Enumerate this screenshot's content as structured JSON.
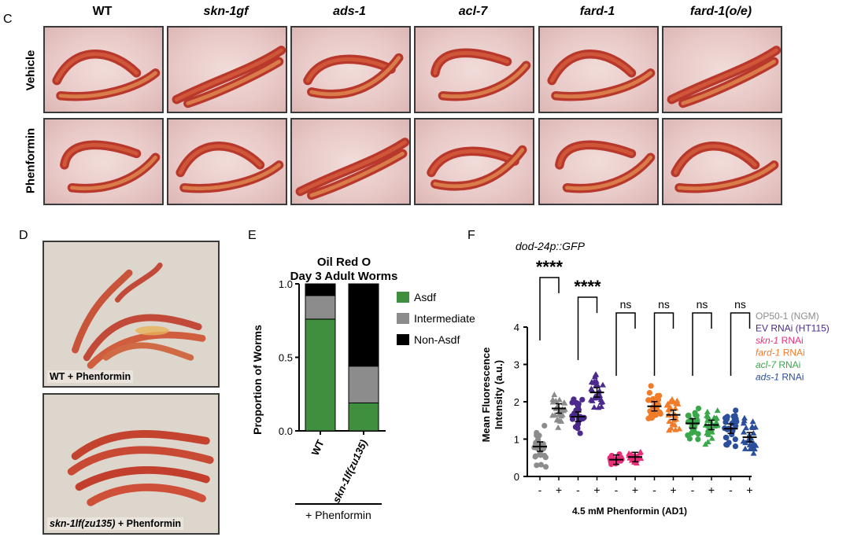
{
  "panel_c": {
    "label": "C",
    "columns": [
      {
        "label": "WT",
        "italic": false
      },
      {
        "label": "skn-1gf",
        "italic": true
      },
      {
        "label": "ads-1",
        "italic": true
      },
      {
        "label": "acl-7",
        "italic": true
      },
      {
        "label": "fard-1",
        "italic": true
      },
      {
        "label": "fard-1(o/e)",
        "italic": true
      }
    ],
    "rows": [
      "Vehicle",
      "Phenformin"
    ]
  },
  "panel_d": {
    "label": "D",
    "top_caption": "WT + Phenformin",
    "bottom_caption_italic": "skn-1lf(zu135)",
    "bottom_caption_rest": " + Phenformin"
  },
  "panel_e": {
    "label": "E",
    "below_label": "+ Phenformin"
  },
  "panel_f": {
    "label": "F",
    "subtitle": "dod-24p::GFP"
  },
  "colors": {
    "asdf": "#3f8f3f",
    "intermediate": "#8c8c8c",
    "non_asdf": "#000000",
    "op50": "#8c8c8c",
    "ev": "#4b2a8c",
    "skn1": "#e8307a",
    "fard1": "#f07c2a",
    "acl7": "#3aa84a",
    "ads1": "#2a4f9c"
  },
  "chart_data": [
    {
      "type": "bar",
      "stacked": true,
      "title": "Oil Red O\nDay 3 Adult Worms",
      "title_lines": [
        "Oil Red O",
        "Day 3 Adult Worms"
      ],
      "ylabel": "Proportion of Worms",
      "xlabel": "",
      "ylim": [
        0,
        1.0
      ],
      "yticks": [
        "0.0",
        "0.5",
        "1.0"
      ],
      "categories": [
        "WT",
        "skn-1lf(zu135)"
      ],
      "series": [
        {
          "name": "Asdf",
          "values": [
            0.76,
            0.19
          ]
        },
        {
          "name": "Intermediate",
          "values": [
            0.16,
            0.25
          ]
        },
        {
          "name": "Non-Asdf",
          "values": [
            0.08,
            0.56
          ]
        }
      ],
      "legend": [
        "Asdf",
        "Intermediate",
        "Non-Asdf"
      ]
    },
    {
      "type": "scatter",
      "subtitle": "dod-24p::GFP",
      "ylabel_lines": [
        "Mean Fluorescence",
        "Intensity (a.u.)"
      ],
      "xlabel": "4.5 mM Phenformin (AD1)",
      "ylim": [
        0,
        4
      ],
      "yticks": [
        "0",
        "1",
        "2",
        "3",
        "4"
      ],
      "x_ticks": [
        "-",
        "+",
        "-",
        "+",
        "-",
        "+",
        "-",
        "+",
        "-",
        "+",
        "-",
        "+"
      ],
      "groups": [
        {
          "name": "OP50-1 (NGM)",
          "condition": "-",
          "mean": 0.8,
          "color_key": "op50",
          "marker": "circle"
        },
        {
          "name": "OP50-1 (NGM)",
          "condition": "+",
          "mean": 1.82,
          "color_key": "op50",
          "marker": "triangle"
        },
        {
          "name": "EV RNAi (HT115)",
          "condition": "-",
          "mean": 1.6,
          "color_key": "ev",
          "marker": "circle"
        },
        {
          "name": "EV RNAi (HT115)",
          "condition": "+",
          "mean": 2.25,
          "color_key": "ev",
          "marker": "triangle"
        },
        {
          "name": "skn-1 RNAi",
          "condition": "-",
          "mean": 0.45,
          "color_key": "skn1",
          "marker": "circle"
        },
        {
          "name": "skn-1 RNAi",
          "condition": "+",
          "mean": 0.52,
          "color_key": "skn1",
          "marker": "triangle"
        },
        {
          "name": "fard-1 RNAi",
          "condition": "-",
          "mean": 1.88,
          "color_key": "fard1",
          "marker": "circle"
        },
        {
          "name": "fard-1 RNAi",
          "condition": "+",
          "mean": 1.65,
          "color_key": "fard1",
          "marker": "triangle"
        },
        {
          "name": "acl-7 RNAi",
          "condition": "-",
          "mean": 1.42,
          "color_key": "acl7",
          "marker": "circle"
        },
        {
          "name": "acl-7 RNAi",
          "condition": "+",
          "mean": 1.38,
          "color_key": "acl7",
          "marker": "triangle"
        },
        {
          "name": "ads-1 RNAi",
          "condition": "-",
          "mean": 1.28,
          "color_key": "ads1",
          "marker": "circle"
        },
        {
          "name": "ads-1 RNAi",
          "condition": "+",
          "mean": 1.05,
          "color_key": "ads1",
          "marker": "triangle"
        }
      ],
      "significance": [
        {
          "pair": [
            0,
            1
          ],
          "label": "****"
        },
        {
          "pair": [
            2,
            3
          ],
          "label": "****"
        },
        {
          "pair": [
            4,
            5
          ],
          "label": "ns"
        },
        {
          "pair": [
            6,
            7
          ],
          "label": "ns"
        },
        {
          "pair": [
            8,
            9
          ],
          "label": "ns"
        },
        {
          "pair": [
            10,
            11
          ],
          "label": "ns"
        }
      ],
      "legend": [
        {
          "italic": "",
          "text": "OP50-1 (NGM)",
          "color_key": "op50"
        },
        {
          "italic": "",
          "text": "EV RNAi (HT115)",
          "color_key": "ev"
        },
        {
          "italic": "skn-1",
          "text": " RNAi",
          "color_key": "skn1"
        },
        {
          "italic": "fard-1",
          "text": " RNAi",
          "color_key": "fard1"
        },
        {
          "italic": "acl-7",
          "text": " RNAi",
          "color_key": "acl7"
        },
        {
          "italic": "ads-1",
          "text": " RNAi",
          "color_key": "ads1"
        }
      ]
    }
  ]
}
